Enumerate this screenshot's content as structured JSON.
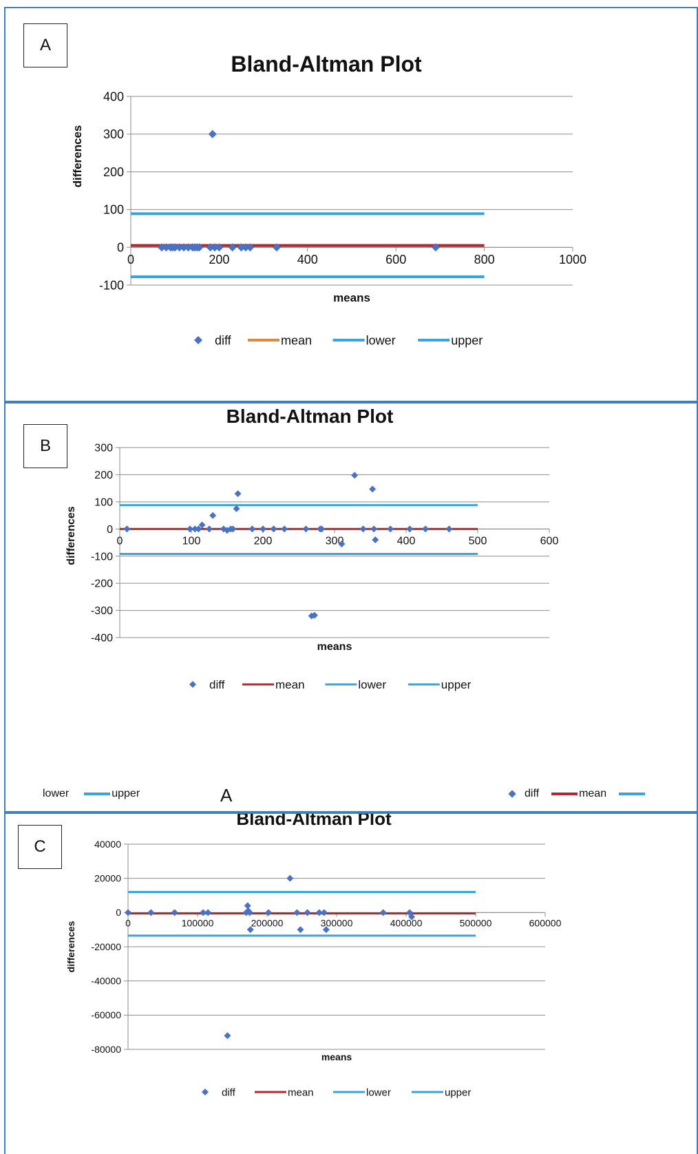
{
  "panels": [
    {
      "label": "A"
    },
    {
      "label": "B"
    },
    {
      "label": "C"
    }
  ],
  "colors": {
    "diff": "#4a72c4",
    "mean": "#b3272d",
    "mean_legend_A": "#e3873f",
    "lower": "#38a5d8",
    "upper": "#38a5d8",
    "grid": "#8c8c8c",
    "border": "#3f7fbf"
  },
  "legend_labels": {
    "diff": "diff",
    "mean": "mean",
    "lower": "lower",
    "upper": "upper"
  },
  "artifact": {
    "left_lower": "lower",
    "left_upper": "upper",
    "center": "A",
    "right_diff": "diff",
    "right_mean": "mean"
  },
  "chart_data": [
    {
      "type": "scatter",
      "title": "Bland-Altman Plot",
      "xlabel": "means",
      "ylabel": "differences",
      "xlim": [
        0,
        1000
      ],
      "ylim": [
        -100,
        400
      ],
      "xticks": [
        "0",
        "200",
        "400",
        "600",
        "800",
        "1000"
      ],
      "yticks": [
        "-100",
        "0",
        "100",
        "200",
        "300",
        "400"
      ],
      "series": [
        {
          "name": "diff",
          "kind": "points",
          "points": [
            [
              70,
              0
            ],
            [
              80,
              0
            ],
            [
              90,
              0
            ],
            [
              95,
              0
            ],
            [
              100,
              0
            ],
            [
              110,
              0
            ],
            [
              120,
              0
            ],
            [
              130,
              0
            ],
            [
              140,
              0
            ],
            [
              145,
              0
            ],
            [
              150,
              0
            ],
            [
              155,
              0
            ],
            [
              180,
              0
            ],
            [
              185,
              300
            ],
            [
              190,
              0
            ],
            [
              200,
              0
            ],
            [
              230,
              0
            ],
            [
              250,
              0
            ],
            [
              260,
              0
            ],
            [
              270,
              0
            ],
            [
              330,
              0
            ],
            [
              690,
              0
            ]
          ]
        },
        {
          "name": "mean",
          "kind": "line",
          "x": [
            0,
            800
          ],
          "y": [
            5,
            5
          ]
        },
        {
          "name": "lower",
          "kind": "line",
          "x": [
            0,
            800
          ],
          "y": [
            -78,
            -78
          ]
        },
        {
          "name": "upper",
          "kind": "line",
          "x": [
            0,
            800
          ],
          "y": [
            89,
            89
          ]
        }
      ],
      "legend": "bottom"
    },
    {
      "type": "scatter",
      "title": "Bland-Altman Plot",
      "xlabel": "means",
      "ylabel": "differences",
      "xlim": [
        0,
        600
      ],
      "ylim": [
        -400,
        300
      ],
      "xticks": [
        "0",
        "100",
        "200",
        "300",
        "400",
        "500",
        "600"
      ],
      "yticks": [
        "-400",
        "-300",
        "-200",
        "-100",
        "0",
        "100",
        "200",
        "300"
      ],
      "series": [
        {
          "name": "diff",
          "kind": "points",
          "points": [
            [
              10,
              0
            ],
            [
              98,
              0
            ],
            [
              105,
              0
            ],
            [
              110,
              0
            ],
            [
              115,
              15
            ],
            [
              125,
              0
            ],
            [
              130,
              50
            ],
            [
              145,
              0
            ],
            [
              150,
              -5
            ],
            [
              155,
              0
            ],
            [
              158,
              0
            ],
            [
              163,
              75
            ],
            [
              165,
              130
            ],
            [
              185,
              0
            ],
            [
              200,
              0
            ],
            [
              215,
              0
            ],
            [
              230,
              0
            ],
            [
              260,
              0
            ],
            [
              268,
              -320
            ],
            [
              272,
              -318
            ],
            [
              280,
              0
            ],
            [
              282,
              0
            ],
            [
              310,
              -55
            ],
            [
              328,
              198
            ],
            [
              340,
              0
            ],
            [
              353,
              147
            ],
            [
              355,
              0
            ],
            [
              357,
              -40
            ],
            [
              378,
              0
            ],
            [
              405,
              0
            ],
            [
              427,
              0
            ],
            [
              460,
              0
            ]
          ]
        },
        {
          "name": "mean",
          "kind": "line",
          "x": [
            0,
            500
          ],
          "y": [
            0,
            0
          ]
        },
        {
          "name": "lower",
          "kind": "line",
          "x": [
            0,
            500
          ],
          "y": [
            -92,
            -92
          ]
        },
        {
          "name": "upper",
          "kind": "line",
          "x": [
            0,
            500
          ],
          "y": [
            88,
            88
          ]
        }
      ],
      "legend": "bottom"
    },
    {
      "type": "scatter",
      "title": "Bland-Altman Plot",
      "xlabel": "means",
      "ylabel": "differences",
      "xlim": [
        0,
        600000
      ],
      "ylim": [
        -80000,
        40000
      ],
      "xticks": [
        "0",
        "100000",
        "200000",
        "300000",
        "400000",
        "500000",
        "600000"
      ],
      "yticks": [
        "-80000",
        "-60000",
        "-40000",
        "-20000",
        "0",
        "20000",
        "40000"
      ],
      "series": [
        {
          "name": "diff",
          "kind": "points",
          "points": [
            [
              0,
              0
            ],
            [
              33000,
              0
            ],
            [
              67000,
              0
            ],
            [
              108000,
              0
            ],
            [
              115000,
              0
            ],
            [
              143000,
              -72000
            ],
            [
              170000,
              0
            ],
            [
              172000,
              4000
            ],
            [
              173000,
              1000
            ],
            [
              175000,
              0
            ],
            [
              176000,
              -10000
            ],
            [
              202000,
              0
            ],
            [
              233000,
              20000
            ],
            [
              243000,
              0
            ],
            [
              248000,
              -10000
            ],
            [
              258000,
              0
            ],
            [
              275000,
              0
            ],
            [
              282000,
              0
            ],
            [
              285000,
              -10000
            ],
            [
              367000,
              0
            ],
            [
              405000,
              0
            ],
            [
              408000,
              -2500
            ]
          ]
        },
        {
          "name": "mean",
          "kind": "line",
          "x": [
            0,
            500000
          ],
          "y": [
            -500,
            -500
          ]
        },
        {
          "name": "lower",
          "kind": "line",
          "x": [
            0,
            500000
          ],
          "y": [
            -13500,
            -13500
          ]
        },
        {
          "name": "upper",
          "kind": "line",
          "x": [
            0,
            500000
          ],
          "y": [
            12000,
            12000
          ]
        }
      ],
      "legend": "bottom"
    }
  ]
}
